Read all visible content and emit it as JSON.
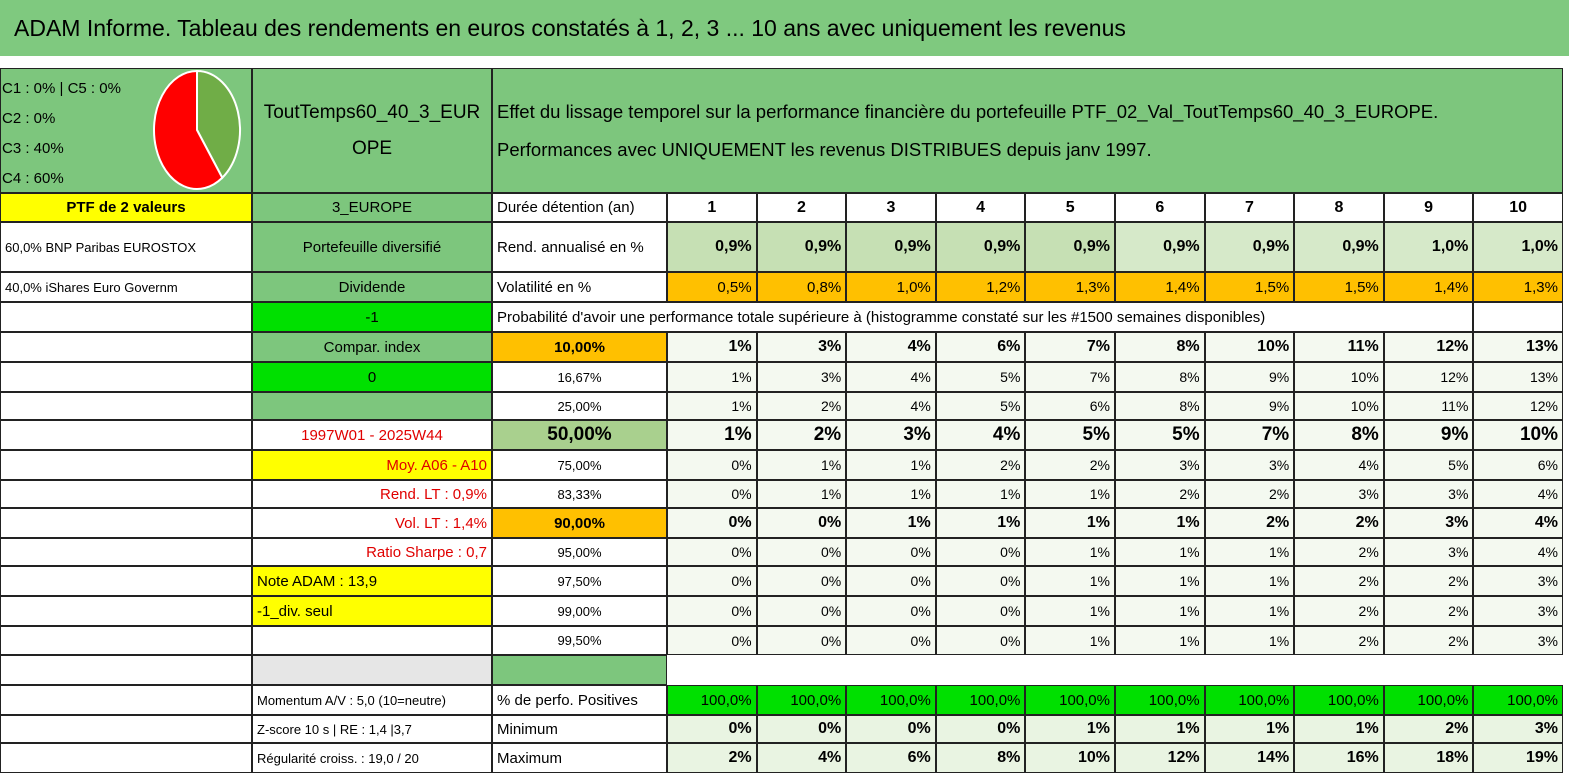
{
  "title": "ADAM Informe. Tableau des rendements en euros constatés à 1, 2, 3 ... 10 ans avec uniquement les revenus",
  "legend": [
    "C1 : 0% | C5 : 0%",
    "C2 : 0%",
    "C3 : 40%",
    "C4 : 60%"
  ],
  "pie": {
    "values": [
      40,
      60
    ],
    "colors": [
      "#70ad47",
      "#ff0000"
    ]
  },
  "fund": "ToutTemps60_40_3_EUROPE",
  "description": "Effet du lissage temporel sur la performance financière du portefeuille PTF_02_Val_ToutTemps60_40_3_EUROPE. Performances avec UNIQUEMENT les revenus DISTRIBUES depuis janv 1997.",
  "rows": [
    {
      "a": "PTF de 2 valeurs",
      "b": "3_EUROPE",
      "c": "Durée détention (an)",
      "v": [
        1,
        2,
        3,
        4,
        5,
        6,
        7,
        8,
        9,
        10
      ]
    },
    {
      "a": "60,0% BNP Paribas EUROSTOX",
      "b": "Portefeuille diversifié",
      "c": "Rend. annualisé en %",
      "v": [
        "0,9%",
        "0,9%",
        "0,9%",
        "0,9%",
        "0,9%",
        "0,9%",
        "0,9%",
        "0,9%",
        "1,0%",
        "1,0%"
      ]
    },
    {
      "a": "40,0% iShares Euro Governm",
      "b": "Dividende",
      "c": "Volatilité en %",
      "v": [
        "0,5%",
        "0,8%",
        "1,0%",
        "1,2%",
        "1,3%",
        "1,4%",
        "1,5%",
        "1,5%",
        "1,4%",
        "1,3%"
      ]
    },
    {
      "b": "-1",
      "c": "Probabilité d'avoir une performance totale supérieure à (histogramme constaté sur les #1500 semaines disponibles)"
    },
    {
      "b": "Compar. index",
      "c": "10,00%",
      "v": [
        "1%",
        "3%",
        "4%",
        "6%",
        "7%",
        "8%",
        "10%",
        "11%",
        "12%",
        "13%"
      ]
    },
    {
      "b": "0",
      "c": "16,67%",
      "v": [
        "1%",
        "3%",
        "4%",
        "5%",
        "7%",
        "8%",
        "9%",
        "10%",
        "12%",
        "13%"
      ]
    },
    {
      "c": "25,00%",
      "v": [
        "1%",
        "2%",
        "4%",
        "5%",
        "6%",
        "8%",
        "9%",
        "10%",
        "11%",
        "12%"
      ]
    },
    {
      "b": "1997W01 - 2025W44",
      "c": "50,00%",
      "v": [
        "1%",
        "2%",
        "3%",
        "4%",
        "5%",
        "5%",
        "7%",
        "8%",
        "9%",
        "10%"
      ]
    },
    {
      "b": "Moy. A06 - A10",
      "c": "75,00%",
      "v": [
        "0%",
        "1%",
        "1%",
        "2%",
        "2%",
        "3%",
        "3%",
        "4%",
        "5%",
        "6%"
      ]
    },
    {
      "b": "Rend. LT : 0,9%",
      "c": "83,33%",
      "v": [
        "0%",
        "1%",
        "1%",
        "1%",
        "1%",
        "2%",
        "2%",
        "3%",
        "3%",
        "4%"
      ]
    },
    {
      "b": "Vol. LT : 1,4%",
      "c": "90,00%",
      "v": [
        "0%",
        "0%",
        "1%",
        "1%",
        "1%",
        "1%",
        "2%",
        "2%",
        "3%",
        "4%"
      ]
    },
    {
      "b": "Ratio Sharpe : 0,7",
      "c": "95,00%",
      "v": [
        "0%",
        "0%",
        "0%",
        "0%",
        "1%",
        "1%",
        "1%",
        "2%",
        "3%",
        "4%"
      ]
    },
    {
      "b": "Note ADAM : 13,9",
      "c": "97,50%",
      "v": [
        "0%",
        "0%",
        "0%",
        "0%",
        "1%",
        "1%",
        "1%",
        "2%",
        "2%",
        "3%"
      ]
    },
    {
      "b": "-1_div. seul",
      "c": "99,00%",
      "v": [
        "0%",
        "0%",
        "0%",
        "0%",
        "1%",
        "1%",
        "1%",
        "2%",
        "2%",
        "3%"
      ]
    },
    {
      "c": "99,50%",
      "v": [
        "0%",
        "0%",
        "0%",
        "0%",
        "1%",
        "1%",
        "1%",
        "2%",
        "2%",
        "3%"
      ]
    },
    {},
    {
      "b": "Momentum A/V : 5,0 (10=neutre)",
      "c": "% de perfo. Positives",
      "v": [
        "100,0%",
        "100,0%",
        "100,0%",
        "100,0%",
        "100,0%",
        "100,0%",
        "100,0%",
        "100,0%",
        "100,0%",
        "100,0%"
      ]
    },
    {
      "b": "Z-score 10 s | RE : 1,4 |3,7",
      "c": "Minimum",
      "v": [
        "0%",
        "0%",
        "0%",
        "0%",
        "1%",
        "1%",
        "1%",
        "1%",
        "2%",
        "3%"
      ]
    },
    {
      "b": "Régularité croiss. : 19,0 / 20",
      "c": "Maximum",
      "v": [
        "2%",
        "4%",
        "6%",
        "8%",
        "10%",
        "12%",
        "14%",
        "16%",
        "18%",
        "19%"
      ]
    }
  ]
}
